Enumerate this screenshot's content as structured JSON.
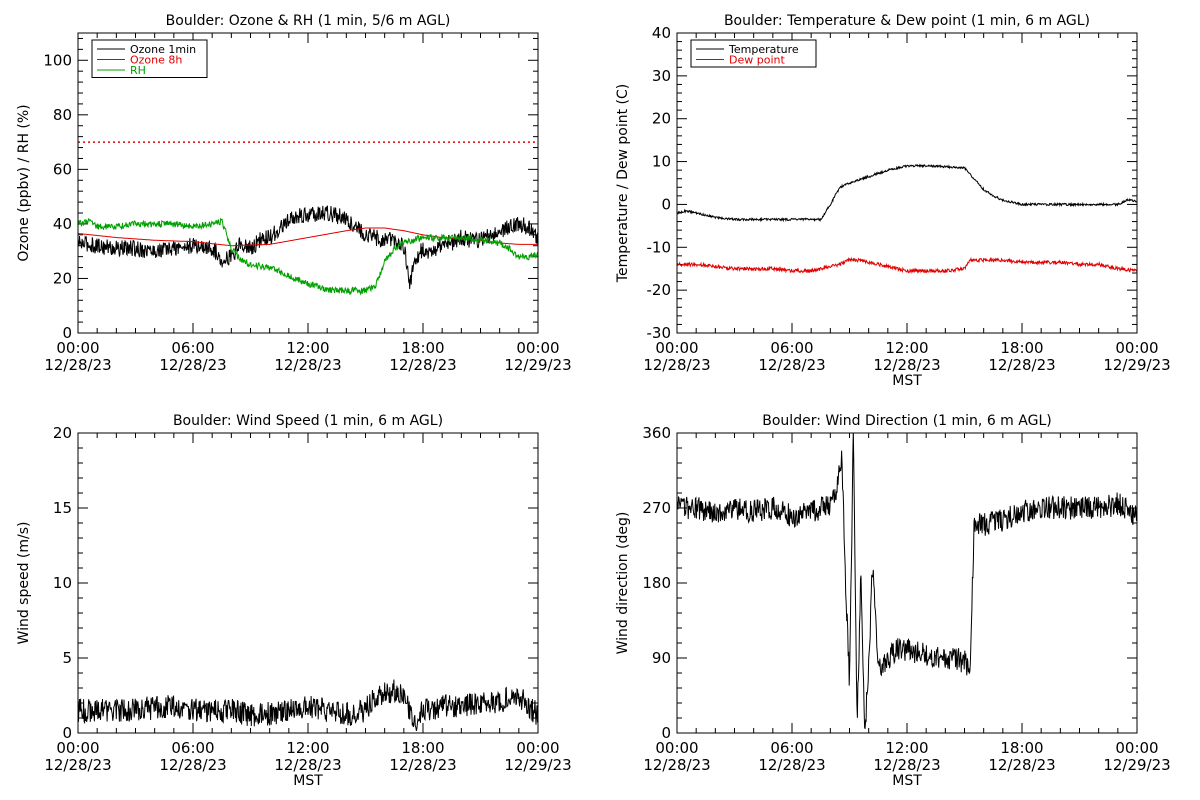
{
  "chart_data": [
    {
      "type": "line",
      "title": "Boulder: Ozone & RH (1 min, 5/6 m AGL)",
      "ylabel": "Ozone (ppbv) / RH (%)",
      "xlabel": "",
      "x_unit": "hours",
      "xlim": [
        0,
        24
      ],
      "ylim": [
        0,
        110
      ],
      "yticks": [
        0,
        20,
        40,
        60,
        80,
        100
      ],
      "x_tick_labels": [
        {
          "time": "00:00",
          "date": "12/28/23"
        },
        {
          "time": "06:00",
          "date": "12/28/23"
        },
        {
          "time": "12:00",
          "date": "12/28/23"
        },
        {
          "time": "18:00",
          "date": "12/28/23"
        },
        {
          "time": "00:00",
          "date": "12/29/23"
        }
      ],
      "legend_position": "top-left",
      "reference_lines": [
        {
          "y": 70,
          "color": "#e00000",
          "style": "dotted"
        }
      ],
      "series": [
        {
          "name": "Ozone 1min",
          "color": "#000000",
          "noise": 3,
          "x": [
            0,
            1,
            2,
            3,
            4,
            5,
            6,
            7,
            7.5,
            8,
            8.5,
            9,
            9.5,
            10,
            10.5,
            11,
            11.5,
            12,
            12.5,
            13,
            13.5,
            14,
            14.5,
            15,
            15.5,
            16,
            16.5,
            17,
            17.3,
            17.6,
            18,
            18.5,
            19,
            19.5,
            20,
            20.5,
            21,
            21.5,
            22,
            22.5,
            23,
            23.5,
            24
          ],
          "values": [
            33,
            32,
            31,
            31,
            30,
            31,
            32,
            31,
            27,
            28,
            33,
            31,
            34,
            35,
            38,
            41,
            43,
            43,
            44,
            44,
            43,
            42,
            39,
            36,
            35,
            34,
            34,
            32,
            18,
            27,
            31,
            29,
            33,
            33,
            35,
            34,
            34,
            36,
            37,
            39,
            40,
            39,
            34
          ]
        },
        {
          "name": "Ozone 8h",
          "color": "#e00000",
          "noise": 0,
          "x": [
            0,
            2,
            4,
            6,
            8,
            10,
            12,
            14,
            15,
            16,
            17,
            18,
            19,
            20,
            21,
            22,
            23,
            24
          ],
          "values": [
            36.5,
            35,
            34,
            33.5,
            32,
            32.5,
            35,
            37.5,
            38.5,
            38.5,
            37.5,
            36,
            35,
            34.5,
            34,
            33,
            32.5,
            32.5
          ]
        },
        {
          "name": "RH",
          "color": "#00a000",
          "noise": 1.2,
          "x": [
            0,
            0.5,
            1,
            2,
            3,
            4,
            5,
            6,
            7,
            7.5,
            8,
            8.5,
            9,
            10,
            11,
            12,
            13,
            14,
            15,
            15.5,
            16,
            16.5,
            17,
            18,
            19,
            20,
            21,
            22,
            22.5,
            23,
            23.5,
            24
          ],
          "values": [
            40,
            41,
            39,
            39,
            40,
            40,
            40,
            39,
            40,
            41,
            31,
            27,
            25,
            24,
            21,
            18,
            16,
            15.5,
            15.5,
            17,
            26,
            31,
            33,
            35,
            35,
            35,
            34,
            33,
            31,
            28,
            28,
            29
          ]
        }
      ]
    },
    {
      "type": "line",
      "title": "Boulder: Temperature & Dew point (1 min, 6 m AGL)",
      "ylabel": "Temperature / Dew point (C)",
      "xlabel": "MST",
      "x_unit": "hours",
      "xlim": [
        0,
        24
      ],
      "ylim": [
        -30,
        40
      ],
      "yticks": [
        -30,
        -20,
        -10,
        0,
        10,
        20,
        30,
        40
      ],
      "x_tick_labels": [
        {
          "time": "00:00",
          "date": "12/28/23"
        },
        {
          "time": "06:00",
          "date": "12/28/23"
        },
        {
          "time": "12:00",
          "date": "12/28/23"
        },
        {
          "time": "18:00",
          "date": "12/28/23"
        },
        {
          "time": "00:00",
          "date": "12/29/23"
        }
      ],
      "legend_position": "top-left",
      "series": [
        {
          "name": "Temperature",
          "color": "#000000",
          "noise": 0.25,
          "x": [
            0,
            0.5,
            1,
            2,
            3,
            4,
            5,
            6,
            7,
            7.5,
            8,
            8.5,
            9,
            10,
            11,
            11.5,
            12,
            13,
            14,
            15,
            15.5,
            16,
            16.5,
            17,
            18,
            19,
            20,
            21,
            22,
            23,
            23.5,
            24
          ],
          "values": [
            -2,
            -1.5,
            -2,
            -3,
            -3.5,
            -3.5,
            -3.5,
            -3.5,
            -3.5,
            -3.5,
            0,
            4,
            5,
            6.5,
            8,
            8.5,
            9,
            9,
            8.8,
            8.5,
            6,
            3.5,
            2,
            1,
            0,
            0,
            0,
            0,
            0,
            0,
            1,
            0.8
          ]
        },
        {
          "name": "Dew point",
          "color": "#e00000",
          "noise": 0.4,
          "x": [
            0,
            1,
            2,
            3,
            4,
            5,
            6,
            7,
            8,
            8.5,
            9,
            9.5,
            10,
            11,
            12,
            13,
            14,
            15,
            15.3,
            16,
            17,
            18,
            19,
            20,
            21,
            22,
            23,
            24
          ],
          "values": [
            -14,
            -14,
            -14.5,
            -15,
            -15,
            -15,
            -15.5,
            -15.5,
            -14.5,
            -14,
            -13,
            -13,
            -13.5,
            -14.5,
            -15.5,
            -15.5,
            -15.5,
            -15,
            -13,
            -13,
            -13,
            -13.5,
            -13.5,
            -13.5,
            -14,
            -14,
            -15,
            -15.5
          ]
        }
      ]
    },
    {
      "type": "line",
      "title": "Boulder: Wind Speed (1 min, 6 m AGL)",
      "ylabel": "Wind speed (m/s)",
      "xlabel": "MST",
      "x_unit": "hours",
      "xlim": [
        0,
        24
      ],
      "ylim": [
        0,
        20
      ],
      "yticks": [
        0,
        5,
        10,
        15,
        20
      ],
      "x_tick_labels": [
        {
          "time": "00:00",
          "date": "12/28/23"
        },
        {
          "time": "06:00",
          "date": "12/28/23"
        },
        {
          "time": "12:00",
          "date": "12/28/23"
        },
        {
          "time": "18:00",
          "date": "12/28/23"
        },
        {
          "time": "00:00",
          "date": "12/29/23"
        }
      ],
      "series": [
        {
          "name": "",
          "color": "#000000",
          "noise": 0.8,
          "x": [
            0,
            1,
            2,
            3,
            4,
            5,
            6,
            7,
            8,
            9,
            10,
            11,
            12,
            13,
            14,
            15,
            15.5,
            16,
            16.5,
            17,
            17.5,
            18,
            19,
            20,
            21,
            22,
            22.5,
            23,
            23.5,
            24
          ],
          "values": [
            1.5,
            1.5,
            1.5,
            1.5,
            1.7,
            1.8,
            1.5,
            1.5,
            1.5,
            1.2,
            1.3,
            1.5,
            1.8,
            1.5,
            1.2,
            1.5,
            2.5,
            2.7,
            2.8,
            2.5,
            0.5,
            1.5,
            1.8,
            1.8,
            2,
            2,
            2.5,
            2.5,
            1.8,
            1.2
          ]
        }
      ]
    },
    {
      "type": "line",
      "title": "Boulder: Wind Direction (1 min, 6 m AGL)",
      "ylabel": "Wind direction (deg)",
      "xlabel": "MST",
      "x_unit": "hours",
      "xlim": [
        0,
        24
      ],
      "ylim": [
        0,
        360
      ],
      "yticks": [
        0,
        90,
        180,
        270,
        360
      ],
      "x_tick_labels": [
        {
          "time": "00:00",
          "date": "12/28/23"
        },
        {
          "time": "06:00",
          "date": "12/28/23"
        },
        {
          "time": "12:00",
          "date": "12/28/23"
        },
        {
          "time": "18:00",
          "date": "12/28/23"
        },
        {
          "time": "00:00",
          "date": "12/29/23"
        }
      ],
      "series": [
        {
          "name": "",
          "color": "#000000",
          "noise": 14,
          "x": [
            0,
            1,
            2,
            3,
            4,
            5,
            6,
            7,
            8,
            8.4,
            8.6,
            8.8,
            9,
            9.2,
            9.4,
            9.6,
            9.8,
            10,
            10.2,
            10.5,
            11,
            11.5,
            12,
            13,
            14,
            14.5,
            15,
            15.3,
            15.5,
            16,
            17,
            18,
            19,
            20,
            21,
            22,
            23,
            24
          ],
          "values": [
            270,
            270,
            265,
            270,
            265,
            270,
            260,
            265,
            275,
            300,
            330,
            180,
            60,
            360,
            10,
            200,
            0,
            80,
            200,
            80,
            90,
            100,
            100,
            95,
            90,
            90,
            85,
            80,
            250,
            250,
            255,
            265,
            270,
            270,
            270,
            270,
            275,
            260
          ]
        }
      ]
    }
  ]
}
